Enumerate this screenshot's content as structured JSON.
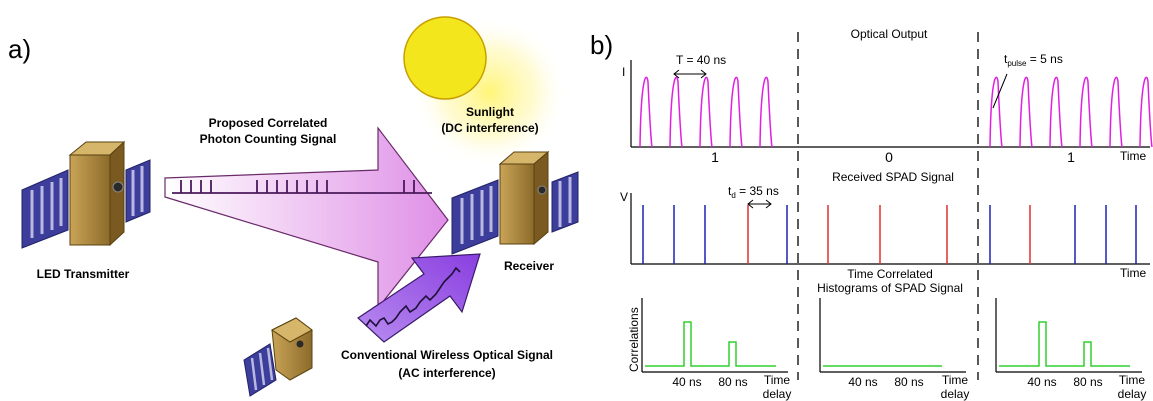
{
  "panel_a": {
    "label": "a)",
    "sunlight_label": "Sunlight",
    "sunlight_sublabel": "(DC interference)",
    "proposed_signal_line1": "Proposed Correlated",
    "proposed_signal_line2": "Photon Counting Signal",
    "transmitter_label": "LED Transmitter",
    "receiver_label": "Receiver",
    "conventional_signal_line1": "Conventional Wireless Optical Signal",
    "conventional_signal_line2": "(AC interference)",
    "colors": {
      "sun": "#f7ea1a",
      "satellite_body": "#b08a3c",
      "solar_panel": "#3f3fa0",
      "proposed_arrow": "#e49ae8",
      "conventional_arrow": "#9a58e6",
      "signal_trace": "#4a1a5a"
    }
  },
  "panel_b": {
    "label": "b)",
    "optical_output_title": "Optical Output",
    "period_label": "T = 40 ns",
    "pulse_label_main": "t",
    "pulse_label_sub": "pulse",
    "pulse_label_rest": " = 5 ns",
    "i_axis": "I",
    "time_axis_1": "Time",
    "bit_1": "1",
    "bit_0": "0",
    "bit_3": "1",
    "received_title": "Received SPAD Signal",
    "v_axis": "V",
    "delay_label_main": "t",
    "delay_label_sub": "d",
    "delay_label_rest": " = 35 ns",
    "time_axis_2": "Time",
    "histogram_title_line1": "Time Correlated",
    "histogram_title_line2": "Histograms of SPAD Signal",
    "correlations_axis": "Correlations",
    "hist_ticks": [
      "40 ns",
      "80 ns"
    ],
    "time_delay_line1": "Time",
    "time_delay_line2": "delay",
    "colors": {
      "optical_pulse": "#e020e0",
      "spad_correlated": "#2020b0",
      "spad_noise": "#e03030",
      "histogram": "#30d030"
    }
  }
}
